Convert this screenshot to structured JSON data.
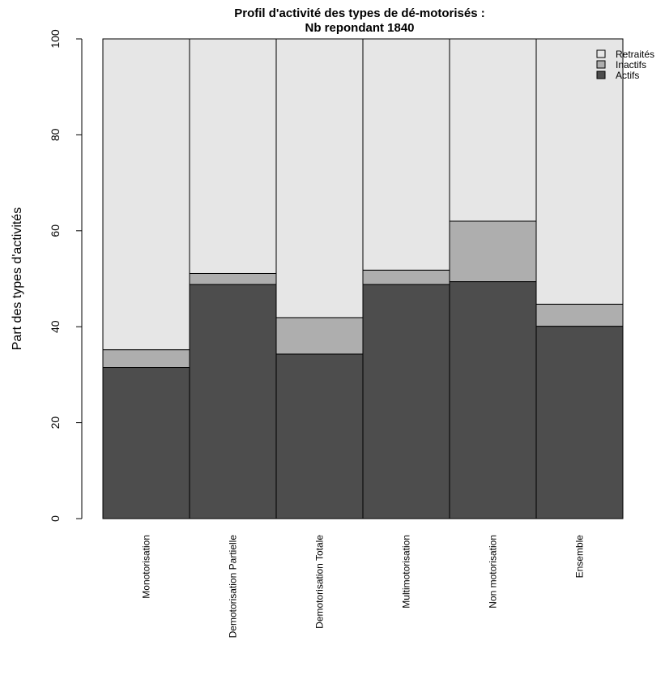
{
  "chart_data": {
    "type": "bar",
    "stacked": true,
    "title": "Profil d'activité des types de dé-motorisés :",
    "subtitle": "Nb repondant 1840",
    "xlabel": "",
    "ylabel": "Part des types d'activités",
    "ylim": [
      0,
      100
    ],
    "yticks": [
      "0",
      "20",
      "40",
      "60",
      "80",
      "100"
    ],
    "grid": false,
    "legend_position": "top-right",
    "categories": [
      "Monotorisation",
      "Demotorisation Partielle",
      "Demotorisation Totale",
      "Multimotorisation",
      "Non motorisation",
      "Ensemble"
    ],
    "series": [
      {
        "name": "Actifs",
        "color": "#4d4d4d",
        "values": [
          31.5,
          48.8,
          34.3,
          48.8,
          49.4,
          40.1
        ]
      },
      {
        "name": "Inactifs",
        "color": "#aeaeae",
        "values": [
          3.7,
          2.3,
          7.6,
          3.0,
          12.6,
          4.6
        ]
      },
      {
        "name": "Retraités",
        "color": "#e6e6e6",
        "values": [
          64.8,
          48.9,
          58.1,
          48.2,
          38.0,
          55.3
        ]
      }
    ],
    "legend_order": [
      "Retraités",
      "Inactifs",
      "Actifs"
    ]
  }
}
